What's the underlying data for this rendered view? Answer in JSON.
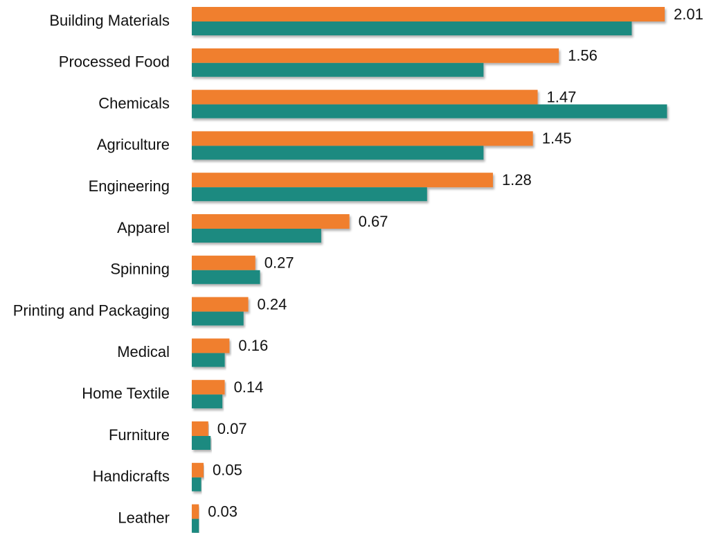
{
  "chart_data": {
    "type": "barh",
    "categories": [
      "Building Materials",
      "Processed Food",
      "Chemicals",
      "Agriculture",
      "Engineering",
      "Apparel",
      "Spinning",
      "Printing and Packaging",
      "Medical",
      "Home Textile",
      "Furniture",
      "Handicrafts",
      "Leather"
    ],
    "series": [
      {
        "color": "#f07f2f",
        "values": [
          2.01,
          1.56,
          1.47,
          1.45,
          1.28,
          0.67,
          0.27,
          0.24,
          0.16,
          0.14,
          0.07,
          0.05,
          0.03
        ],
        "labeled": true
      },
      {
        "color": "#1f8a80",
        "values": [
          1.87,
          1.24,
          2.02,
          1.24,
          1.0,
          0.55,
          0.29,
          0.22,
          0.14,
          0.13,
          0.08,
          0.04,
          0.03
        ],
        "labeled": false
      }
    ],
    "xlim": [
      0,
      2.2
    ]
  }
}
